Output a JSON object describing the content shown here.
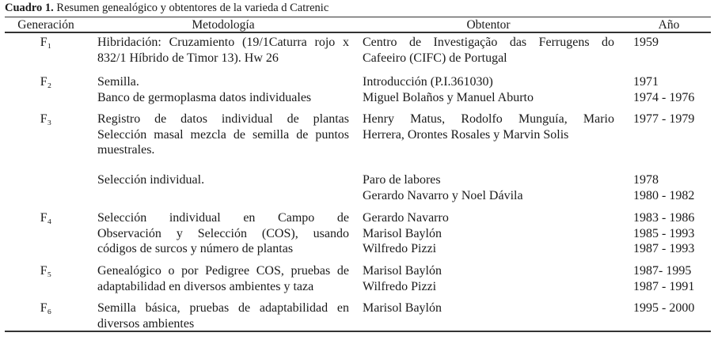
{
  "title": {
    "label": "Cuadro 1.",
    "text": " Resumen genealógico y obtentores de la varieda d Catrenic"
  },
  "headers": {
    "generacion": "Generación",
    "metodologia": "Metodología",
    "obtentor": "Obtentor",
    "ano": "Año"
  },
  "rows": [
    {
      "gen": "F₁",
      "met": [
        "Hibridación: Cruzamiento (19/1Caturra rojo x",
        "832/1 Híbrido de Timor 13). Hw 26"
      ],
      "met_just": [
        true,
        false
      ],
      "obt": [
        "Centro de Investigação das Ferrugens do",
        "Cafeeiro (CIFC) de Portugal"
      ],
      "obt_just": [
        true,
        false
      ],
      "ano": [
        "1959"
      ]
    },
    {
      "gen": "F₂",
      "met": [
        "Semilla.",
        "Banco de germoplasma datos individuales"
      ],
      "met_just": [
        false,
        false
      ],
      "obt": [
        "Introducción (P.I.361030)",
        "Miguel Bolaños y Manuel Aburto"
      ],
      "obt_just": [
        false,
        false
      ],
      "ano": [
        "1971",
        "1974 - 1976"
      ]
    },
    {
      "gen": "F₃",
      "met": [
        "Registro de datos individual de plantas",
        "Selección masal mezcla de semilla de puntos",
        "muestrales."
      ],
      "met_just": [
        true,
        true,
        false
      ],
      "obt": [
        "Henry Matus, Rodolfo Munguía, Mario",
        "Herrera, Orontes Rosales y Marvin Solis"
      ],
      "obt_just": [
        true,
        false
      ],
      "ano": [
        "1977 - 1979"
      ]
    },
    {
      "gen": "",
      "met": [
        "Selección individual."
      ],
      "met_just": [
        false
      ],
      "obt": [
        "Paro de labores",
        "Gerardo Navarro y Noel Dávila"
      ],
      "obt_just": [
        false,
        false
      ],
      "ano": [
        "1978",
        "1980 - 1982"
      ]
    },
    {
      "gen": "F₄",
      "met": [
        "Selección individual en Campo de",
        "Observación y Selección (COS), usando",
        "códigos de surcos y número de plantas"
      ],
      "met_just": [
        true,
        true,
        false
      ],
      "obt": [
        "Gerardo Navarro",
        "Marisol Baylón",
        "Wilfredo Pizzi"
      ],
      "obt_just": [
        false,
        false,
        false
      ],
      "ano": [
        "1983 - 1986",
        "1985 - 1993",
        "1987 - 1993"
      ]
    },
    {
      "gen": "F₅",
      "met": [
        "Genealógico o por Pedigree COS, pruebas de",
        "adaptabilidad en diversos ambientes y taza"
      ],
      "met_just": [
        true,
        false
      ],
      "obt": [
        "Marisol Baylón",
        "Wilfredo Pizzi"
      ],
      "obt_just": [
        false,
        false
      ],
      "ano": [
        "1987- 1995",
        "1987 - 1991"
      ]
    },
    {
      "gen": "F₆",
      "met": [
        "Semilla básica, pruebas de adaptabilidad en",
        "diversos ambientes"
      ],
      "met_just": [
        true,
        false
      ],
      "obt": [
        "Marisol Baylón"
      ],
      "obt_just": [
        false
      ],
      "ano": [
        "1995 - 2000"
      ]
    }
  ]
}
